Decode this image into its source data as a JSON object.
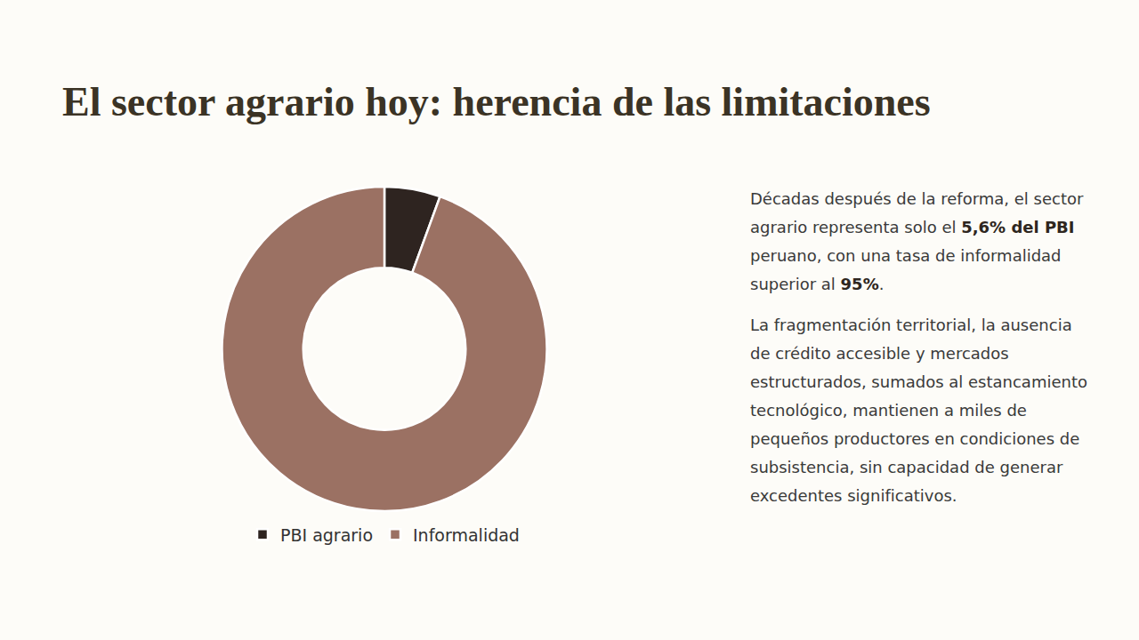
{
  "slide": {
    "title": "El sector agrario hoy: herencia de las limitaciones",
    "paragraphs": [
      [
        {
          "text": "Décadas después de la reforma, el sector agrario representa solo el "
        },
        {
          "text": "5,6% del PBI",
          "bold": true
        },
        {
          "text": " peruano, con una tasa de informalidad superior al "
        },
        {
          "text": "95%",
          "bold": true
        },
        {
          "text": "."
        }
      ],
      [
        {
          "text": "La fragmentación territorial, la ausencia de crédito accesible y mercados estructurados, sumados al estancamiento tecnológico, mantienen a miles de pequeños productores en condiciones de subsistencia, sin capacidad de generar excedentes significativos."
        }
      ]
    ]
  },
  "chart_data": {
    "type": "pie",
    "categories": [
      "PBI agrario",
      "Informalidad"
    ],
    "values": [
      5.6,
      95
    ],
    "colors": [
      "#2e2420",
      "#9b7163"
    ],
    "legend": "bottom"
  }
}
